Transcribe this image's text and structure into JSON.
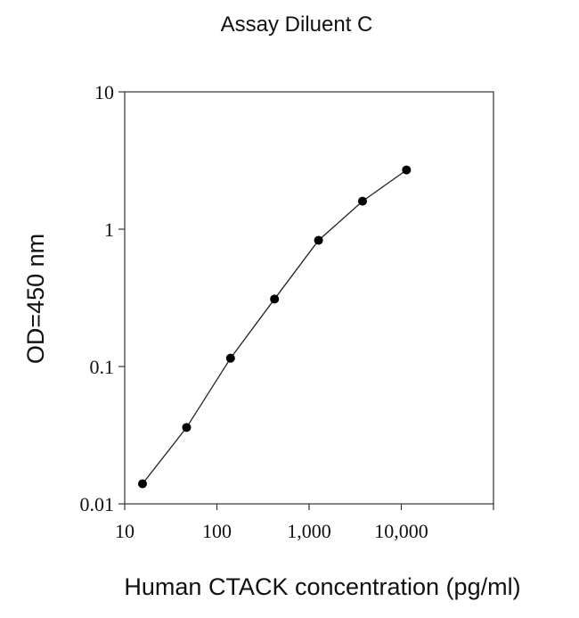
{
  "chart_data": {
    "type": "line",
    "title": "Assay Diluent C",
    "xlabel": "Human CTACK concentration (pg/ml)",
    "ylabel": "OD=450 nm",
    "xscale": "log",
    "yscale": "log",
    "xlim": [
      10,
      100000
    ],
    "ylim": [
      0.01,
      10
    ],
    "xticks": [
      {
        "value": 10,
        "label": "10"
      },
      {
        "value": 100,
        "label": "100"
      },
      {
        "value": 1000,
        "label": "1,000"
      },
      {
        "value": 10000,
        "label": "10,000"
      },
      {
        "value": 100000,
        "label": ""
      }
    ],
    "yticks": [
      {
        "value": 0.01,
        "label": "0.01"
      },
      {
        "value": 0.1,
        "label": "0.1"
      },
      {
        "value": 1,
        "label": "1"
      },
      {
        "value": 10,
        "label": "10"
      }
    ],
    "grid": false,
    "legend": "none",
    "series": [
      {
        "x": [
          15.6,
          46.9,
          140.6,
          421.9,
          1266,
          3797,
          11390
        ],
        "y": [
          0.014,
          0.036,
          0.115,
          0.31,
          0.83,
          1.6,
          2.7
        ]
      }
    ]
  }
}
